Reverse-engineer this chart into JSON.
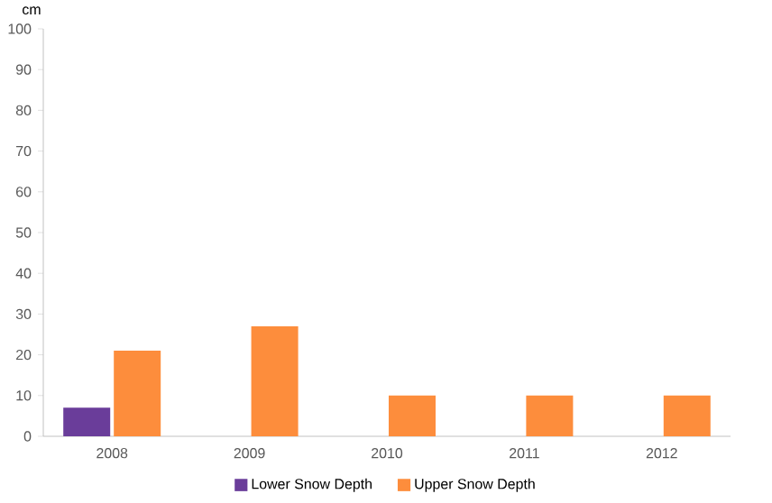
{
  "chart_data": {
    "type": "bar",
    "ylabel": "cm",
    "categories": [
      "2008",
      "2009",
      "2010",
      "2011",
      "2012"
    ],
    "series": [
      {
        "name": "Lower Snow Depth",
        "color": "#6a3d9a",
        "values": [
          7,
          null,
          null,
          null,
          null
        ]
      },
      {
        "name": "Upper Snow Depth",
        "color": "#fd8d3c",
        "values": [
          21,
          27,
          10,
          10,
          10
        ]
      }
    ],
    "ylim": [
      0,
      100
    ],
    "yticks": [
      0,
      10,
      20,
      30,
      40,
      50,
      60,
      70,
      80,
      90,
      100
    ],
    "grid": false,
    "legend": "bottom"
  }
}
